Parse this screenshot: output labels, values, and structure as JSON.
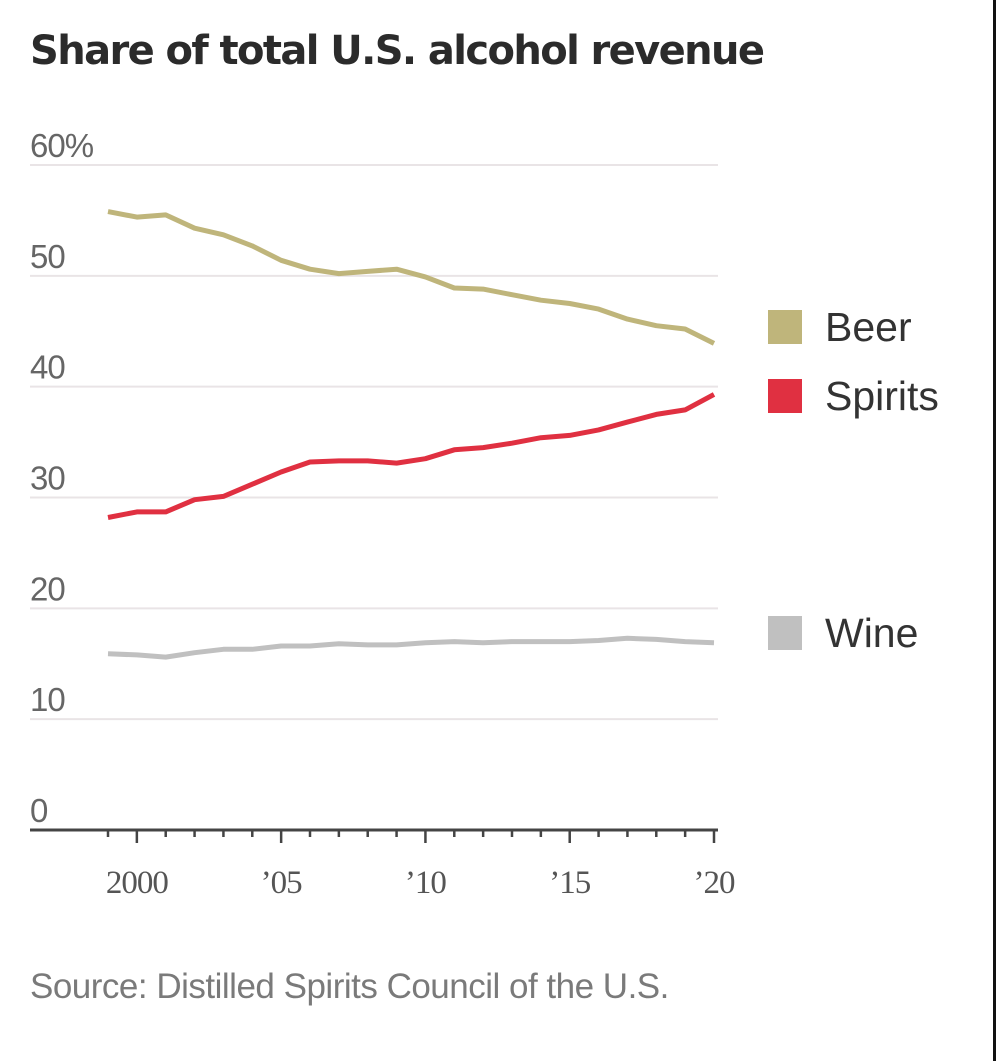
{
  "title": "Share of total U.S. alcohol revenue",
  "source": "Source: Distilled Spirits Council of the U.S.",
  "colors": {
    "Beer": "#bfb57b",
    "Spirits": "#e03041",
    "Wine": "#c0c0c0"
  },
  "chart_data": {
    "type": "line",
    "title": "Share of total U.S. alcohol revenue",
    "xlabel": "",
    "ylabel": "",
    "x": [
      1999,
      2000,
      2001,
      2002,
      2003,
      2004,
      2005,
      2006,
      2007,
      2008,
      2009,
      2010,
      2011,
      2012,
      2013,
      2014,
      2015,
      2016,
      2017,
      2018,
      2019,
      2020
    ],
    "ylim": [
      0,
      60
    ],
    "xlim": [
      1999,
      2020
    ],
    "y_ticks": [
      0,
      10,
      20,
      30,
      40,
      50,
      60
    ],
    "y_tick_labels": [
      "0",
      "10",
      "20",
      "30",
      "40",
      "50",
      "60%"
    ],
    "x_ticks": [
      2000,
      2005,
      2010,
      2015,
      2020
    ],
    "x_tick_labels": [
      "2000",
      "’05",
      "’10",
      "’15",
      "’20"
    ],
    "grid": true,
    "legend": "right",
    "series": [
      {
        "name": "Beer",
        "values": [
          55.8,
          55.3,
          55.5,
          54.3,
          53.7,
          52.7,
          51.4,
          50.6,
          50.2,
          50.4,
          50.6,
          49.9,
          48.9,
          48.8,
          48.3,
          47.8,
          47.5,
          47.0,
          46.1,
          45.5,
          45.2,
          43.9
        ]
      },
      {
        "name": "Spirits",
        "values": [
          28.2,
          28.7,
          28.7,
          29.8,
          30.1,
          31.2,
          32.3,
          33.2,
          33.3,
          33.3,
          33.1,
          33.5,
          34.3,
          34.5,
          34.9,
          35.4,
          35.6,
          36.1,
          36.8,
          37.5,
          37.9,
          39.3
        ]
      },
      {
        "name": "Wine",
        "values": [
          15.9,
          15.8,
          15.6,
          16.0,
          16.3,
          16.3,
          16.6,
          16.6,
          16.8,
          16.7,
          16.7,
          16.9,
          17.0,
          16.9,
          17.0,
          17.0,
          17.0,
          17.1,
          17.3,
          17.2,
          17.0,
          16.9
        ]
      }
    ]
  }
}
